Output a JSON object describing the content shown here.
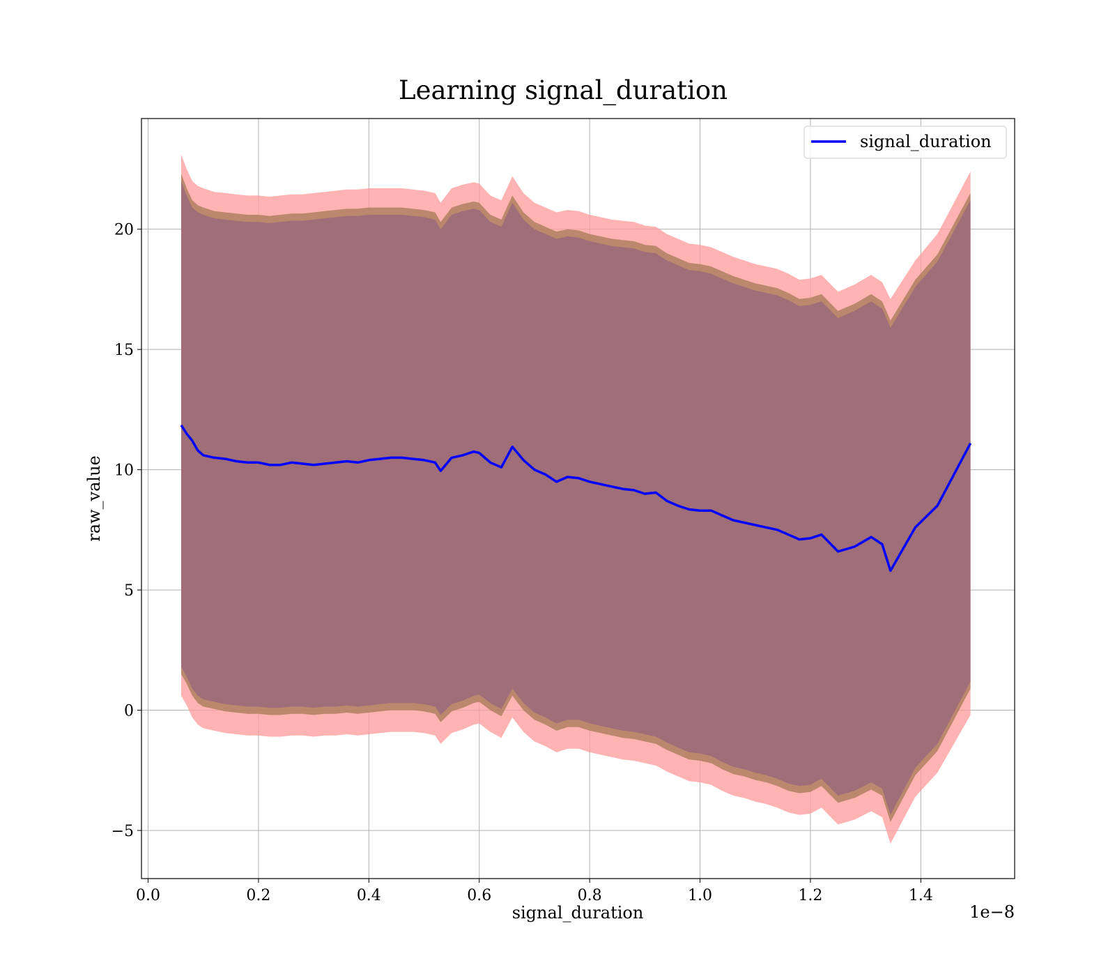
{
  "chart_data": {
    "type": "line",
    "title": "Learning signal_duration",
    "xlabel": "signal_duration",
    "ylabel": "raw_value",
    "x_offset_label": "1e−8",
    "xlim": [
      -0.012,
      1.57
    ],
    "ylim": [
      -7.0,
      24.6
    ],
    "xticks": [
      0.0,
      0.2,
      0.4,
      0.6,
      0.8,
      1.0,
      1.2,
      1.4
    ],
    "xtick_labels": [
      "0.0",
      "0.2",
      "0.4",
      "0.6",
      "0.8",
      "1.0",
      "1.2",
      "1.4"
    ],
    "yticks": [
      -5,
      0,
      5,
      10,
      15,
      20
    ],
    "ytick_labels": [
      "−5",
      "0",
      "5",
      "10",
      "15",
      "20"
    ],
    "grid": true,
    "legend": {
      "position": "upper right",
      "entries": [
        "signal_duration"
      ]
    },
    "colors": {
      "line": "#0000ff",
      "band_outer": "#ff9999",
      "band_middle": "#b08060",
      "band_inner": "#a06e78"
    },
    "series": [
      {
        "name": "signal_duration",
        "x": [
          0.06,
          0.07,
          0.08,
          0.09,
          0.1,
          0.12,
          0.14,
          0.16,
          0.18,
          0.2,
          0.22,
          0.24,
          0.26,
          0.28,
          0.3,
          0.32,
          0.34,
          0.36,
          0.38,
          0.4,
          0.42,
          0.44,
          0.46,
          0.48,
          0.5,
          0.52,
          0.53,
          0.55,
          0.57,
          0.59,
          0.6,
          0.62,
          0.64,
          0.66,
          0.68,
          0.7,
          0.72,
          0.74,
          0.76,
          0.78,
          0.8,
          0.82,
          0.84,
          0.86,
          0.88,
          0.9,
          0.92,
          0.94,
          0.96,
          0.98,
          1.0,
          1.02,
          1.04,
          1.06,
          1.08,
          1.1,
          1.12,
          1.14,
          1.16,
          1.18,
          1.2,
          1.22,
          1.25,
          1.28,
          1.31,
          1.33,
          1.345,
          1.39,
          1.43,
          1.49
        ],
        "y": [
          11.85,
          11.5,
          11.2,
          10.8,
          10.6,
          10.5,
          10.45,
          10.35,
          10.3,
          10.3,
          10.2,
          10.2,
          10.3,
          10.25,
          10.2,
          10.25,
          10.3,
          10.35,
          10.3,
          10.4,
          10.45,
          10.5,
          10.5,
          10.45,
          10.4,
          10.3,
          9.95,
          10.5,
          10.6,
          10.75,
          10.7,
          10.3,
          10.1,
          10.95,
          10.4,
          10.0,
          9.8,
          9.5,
          9.7,
          9.65,
          9.5,
          9.4,
          9.3,
          9.2,
          9.15,
          9.0,
          9.05,
          8.7,
          8.5,
          8.35,
          8.3,
          8.3,
          8.1,
          7.9,
          7.8,
          7.7,
          7.6,
          7.5,
          7.3,
          7.1,
          7.15,
          7.3,
          6.6,
          6.8,
          7.2,
          6.9,
          5.8,
          7.6,
          8.5,
          11.1
        ]
      }
    ],
    "bands": [
      {
        "role": "outer",
        "upper": [
          23.1,
          22.5,
          22.0,
          21.8,
          21.7,
          21.55,
          21.5,
          21.45,
          21.4,
          21.4,
          21.35,
          21.4,
          21.45,
          21.45,
          21.5,
          21.55,
          21.6,
          21.65,
          21.65,
          21.7,
          21.7,
          21.7,
          21.7,
          21.65,
          21.6,
          21.5,
          21.1,
          21.7,
          21.85,
          21.95,
          21.9,
          21.4,
          21.2,
          22.2,
          21.5,
          21.1,
          20.9,
          20.7,
          20.8,
          20.75,
          20.6,
          20.5,
          20.4,
          20.35,
          20.3,
          20.15,
          20.1,
          19.8,
          19.6,
          19.4,
          19.35,
          19.25,
          19.05,
          18.85,
          18.7,
          18.55,
          18.45,
          18.35,
          18.15,
          17.9,
          17.95,
          18.1,
          17.4,
          17.7,
          18.1,
          17.8,
          17.1,
          18.7,
          19.8,
          22.4
        ],
        "lower": [
          0.6,
          0.2,
          -0.3,
          -0.6,
          -0.75,
          -0.85,
          -0.95,
          -1.0,
          -1.05,
          -1.05,
          -1.1,
          -1.1,
          -1.05,
          -1.05,
          -1.1,
          -1.05,
          -1.05,
          -1.0,
          -1.05,
          -1.0,
          -0.95,
          -0.9,
          -0.9,
          -0.9,
          -0.95,
          -1.05,
          -1.4,
          -0.95,
          -0.8,
          -0.6,
          -0.55,
          -0.9,
          -1.15,
          -0.3,
          -0.9,
          -1.3,
          -1.5,
          -1.75,
          -1.6,
          -1.6,
          -1.75,
          -1.85,
          -1.95,
          -2.05,
          -2.1,
          -2.2,
          -2.3,
          -2.55,
          -2.75,
          -2.95,
          -3.0,
          -3.1,
          -3.35,
          -3.55,
          -3.65,
          -3.8,
          -3.9,
          -4.05,
          -4.25,
          -4.35,
          -4.3,
          -4.05,
          -4.75,
          -4.55,
          -4.2,
          -4.45,
          -5.55,
          -3.6,
          -2.6,
          -0.2
        ]
      },
      {
        "role": "middle",
        "upper": [
          22.3,
          21.7,
          21.2,
          21.0,
          20.9,
          20.75,
          20.7,
          20.65,
          20.6,
          20.6,
          20.55,
          20.6,
          20.65,
          20.65,
          20.7,
          20.75,
          20.8,
          20.85,
          20.85,
          20.9,
          20.9,
          20.9,
          20.9,
          20.85,
          20.8,
          20.7,
          20.3,
          20.9,
          21.05,
          21.15,
          21.1,
          20.6,
          20.4,
          21.4,
          20.7,
          20.3,
          20.1,
          19.9,
          20.0,
          19.95,
          19.8,
          19.7,
          19.6,
          19.55,
          19.5,
          19.35,
          19.3,
          19.0,
          18.8,
          18.6,
          18.55,
          18.45,
          18.25,
          18.05,
          17.9,
          17.75,
          17.65,
          17.55,
          17.35,
          17.1,
          17.15,
          17.3,
          16.6,
          16.9,
          17.3,
          17.0,
          16.2,
          17.9,
          18.95,
          21.5
        ],
        "lower": [
          1.5,
          1.1,
          0.6,
          0.3,
          0.15,
          0.05,
          -0.05,
          -0.1,
          -0.15,
          -0.15,
          -0.2,
          -0.2,
          -0.15,
          -0.15,
          -0.2,
          -0.15,
          -0.15,
          -0.1,
          -0.15,
          -0.1,
          -0.05,
          0.0,
          0.0,
          0.0,
          -0.05,
          -0.15,
          -0.5,
          -0.05,
          0.1,
          0.3,
          0.35,
          0.0,
          -0.25,
          0.6,
          0.0,
          -0.4,
          -0.6,
          -0.85,
          -0.7,
          -0.7,
          -0.85,
          -0.95,
          -1.05,
          -1.15,
          -1.2,
          -1.3,
          -1.4,
          -1.65,
          -1.85,
          -2.05,
          -2.1,
          -2.2,
          -2.45,
          -2.65,
          -2.75,
          -2.9,
          -3.0,
          -3.15,
          -3.35,
          -3.45,
          -3.4,
          -3.15,
          -3.85,
          -3.65,
          -3.3,
          -3.55,
          -4.65,
          -2.7,
          -1.7,
          0.9
        ]
      },
      {
        "role": "inner",
        "upper": [
          22.0,
          21.4,
          20.9,
          20.7,
          20.6,
          20.45,
          20.4,
          20.35,
          20.3,
          20.3,
          20.25,
          20.3,
          20.35,
          20.35,
          20.4,
          20.45,
          20.5,
          20.55,
          20.55,
          20.6,
          20.6,
          20.6,
          20.6,
          20.55,
          20.5,
          20.4,
          20.0,
          20.6,
          20.75,
          20.85,
          20.8,
          20.3,
          20.1,
          21.1,
          20.4,
          20.0,
          19.8,
          19.6,
          19.7,
          19.65,
          19.5,
          19.4,
          19.3,
          19.25,
          19.2,
          19.05,
          19.0,
          18.7,
          18.5,
          18.3,
          18.25,
          18.15,
          17.95,
          17.75,
          17.6,
          17.45,
          17.35,
          17.25,
          17.05,
          16.8,
          16.85,
          17.0,
          16.3,
          16.6,
          17.0,
          16.7,
          15.9,
          17.6,
          18.65,
          21.2
        ],
        "lower": [
          1.8,
          1.4,
          0.9,
          0.6,
          0.45,
          0.35,
          0.25,
          0.2,
          0.15,
          0.15,
          0.1,
          0.1,
          0.15,
          0.15,
          0.1,
          0.15,
          0.15,
          0.2,
          0.15,
          0.2,
          0.25,
          0.3,
          0.3,
          0.3,
          0.25,
          0.15,
          -0.2,
          0.25,
          0.4,
          0.6,
          0.65,
          0.3,
          0.05,
          0.9,
          0.3,
          -0.1,
          -0.3,
          -0.55,
          -0.4,
          -0.4,
          -0.55,
          -0.65,
          -0.75,
          -0.85,
          -0.9,
          -1.0,
          -1.1,
          -1.35,
          -1.55,
          -1.75,
          -1.8,
          -1.9,
          -2.15,
          -2.35,
          -2.45,
          -2.6,
          -2.7,
          -2.85,
          -3.05,
          -3.15,
          -3.1,
          -2.85,
          -3.55,
          -3.35,
          -3.0,
          -3.25,
          -4.35,
          -2.4,
          -1.4,
          1.2
        ]
      }
    ]
  }
}
